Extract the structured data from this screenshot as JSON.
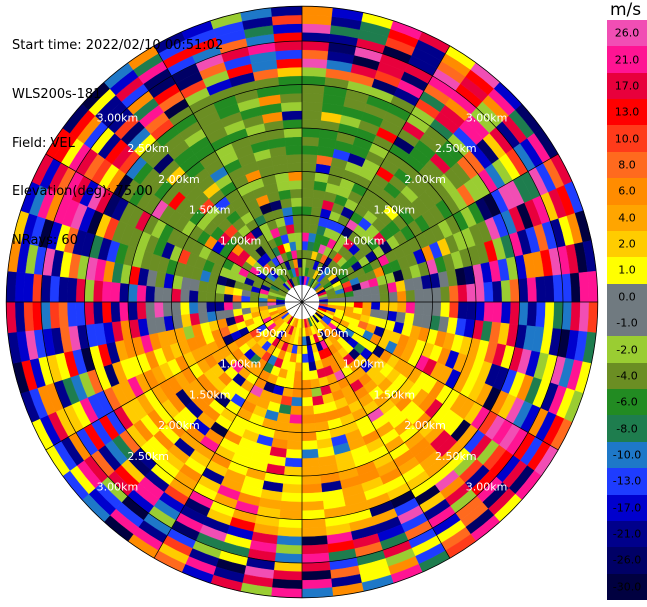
{
  "info": {
    "start_time": "Start time: 2022/02/10 00:51:02",
    "instrument": "WLS200s-181",
    "field": "Field: VEL",
    "elevation": "Elevation(deg): 75.00",
    "nrays": "NRays: 60"
  },
  "colorbar": {
    "unit": "m/s",
    "ticks": [
      "26.0",
      "21.0",
      "17.0",
      "13.0",
      "10.0",
      "8.0",
      "6.0",
      "4.0",
      "2.0",
      "1.0",
      "0.0",
      "-1.0",
      "-2.0",
      "-4.0",
      "-6.0",
      "-8.0",
      "-10.0",
      "-13.0",
      "-17.0",
      "-21.0",
      "-26.0",
      "-30.0"
    ],
    "colors": [
      "#f14eb4",
      "#ff1493",
      "#e8003c",
      "#ff0000",
      "#ff3b1a",
      "#ff6a1e",
      "#ff8c00",
      "#ffa500",
      "#ffcc00",
      "#ffff00",
      "#707a80",
      "#707a80",
      "#9acd32",
      "#6b8e23",
      "#228b22",
      "#1e7d4e",
      "#1e78c8",
      "#1e3cff",
      "#0000cd",
      "#00008b",
      "#000066",
      "#000040"
    ]
  },
  "chart_data": {
    "type": "heatmap",
    "projection": "polar (PPI)",
    "n_rays": 60,
    "range_ring_labels": [
      "500m",
      "1.00km",
      "1.50km",
      "2.00km",
      "2.50km",
      "3.00km"
    ],
    "range_rings_km": [
      0.5,
      1.0,
      1.5,
      2.0,
      2.5,
      3.0
    ],
    "max_range_km": 3.4,
    "value_range": [
      -30,
      30
    ],
    "unit": "m/s",
    "notes": "Radial velocity: olive/green (negative, approaching) dominates the north sector out to ~2.6 km; yellow/orange (positive, receding) dominates the south sector out to ~2.7 km; grey near zero along the east-west line; noisy mixed colours beyond."
  }
}
